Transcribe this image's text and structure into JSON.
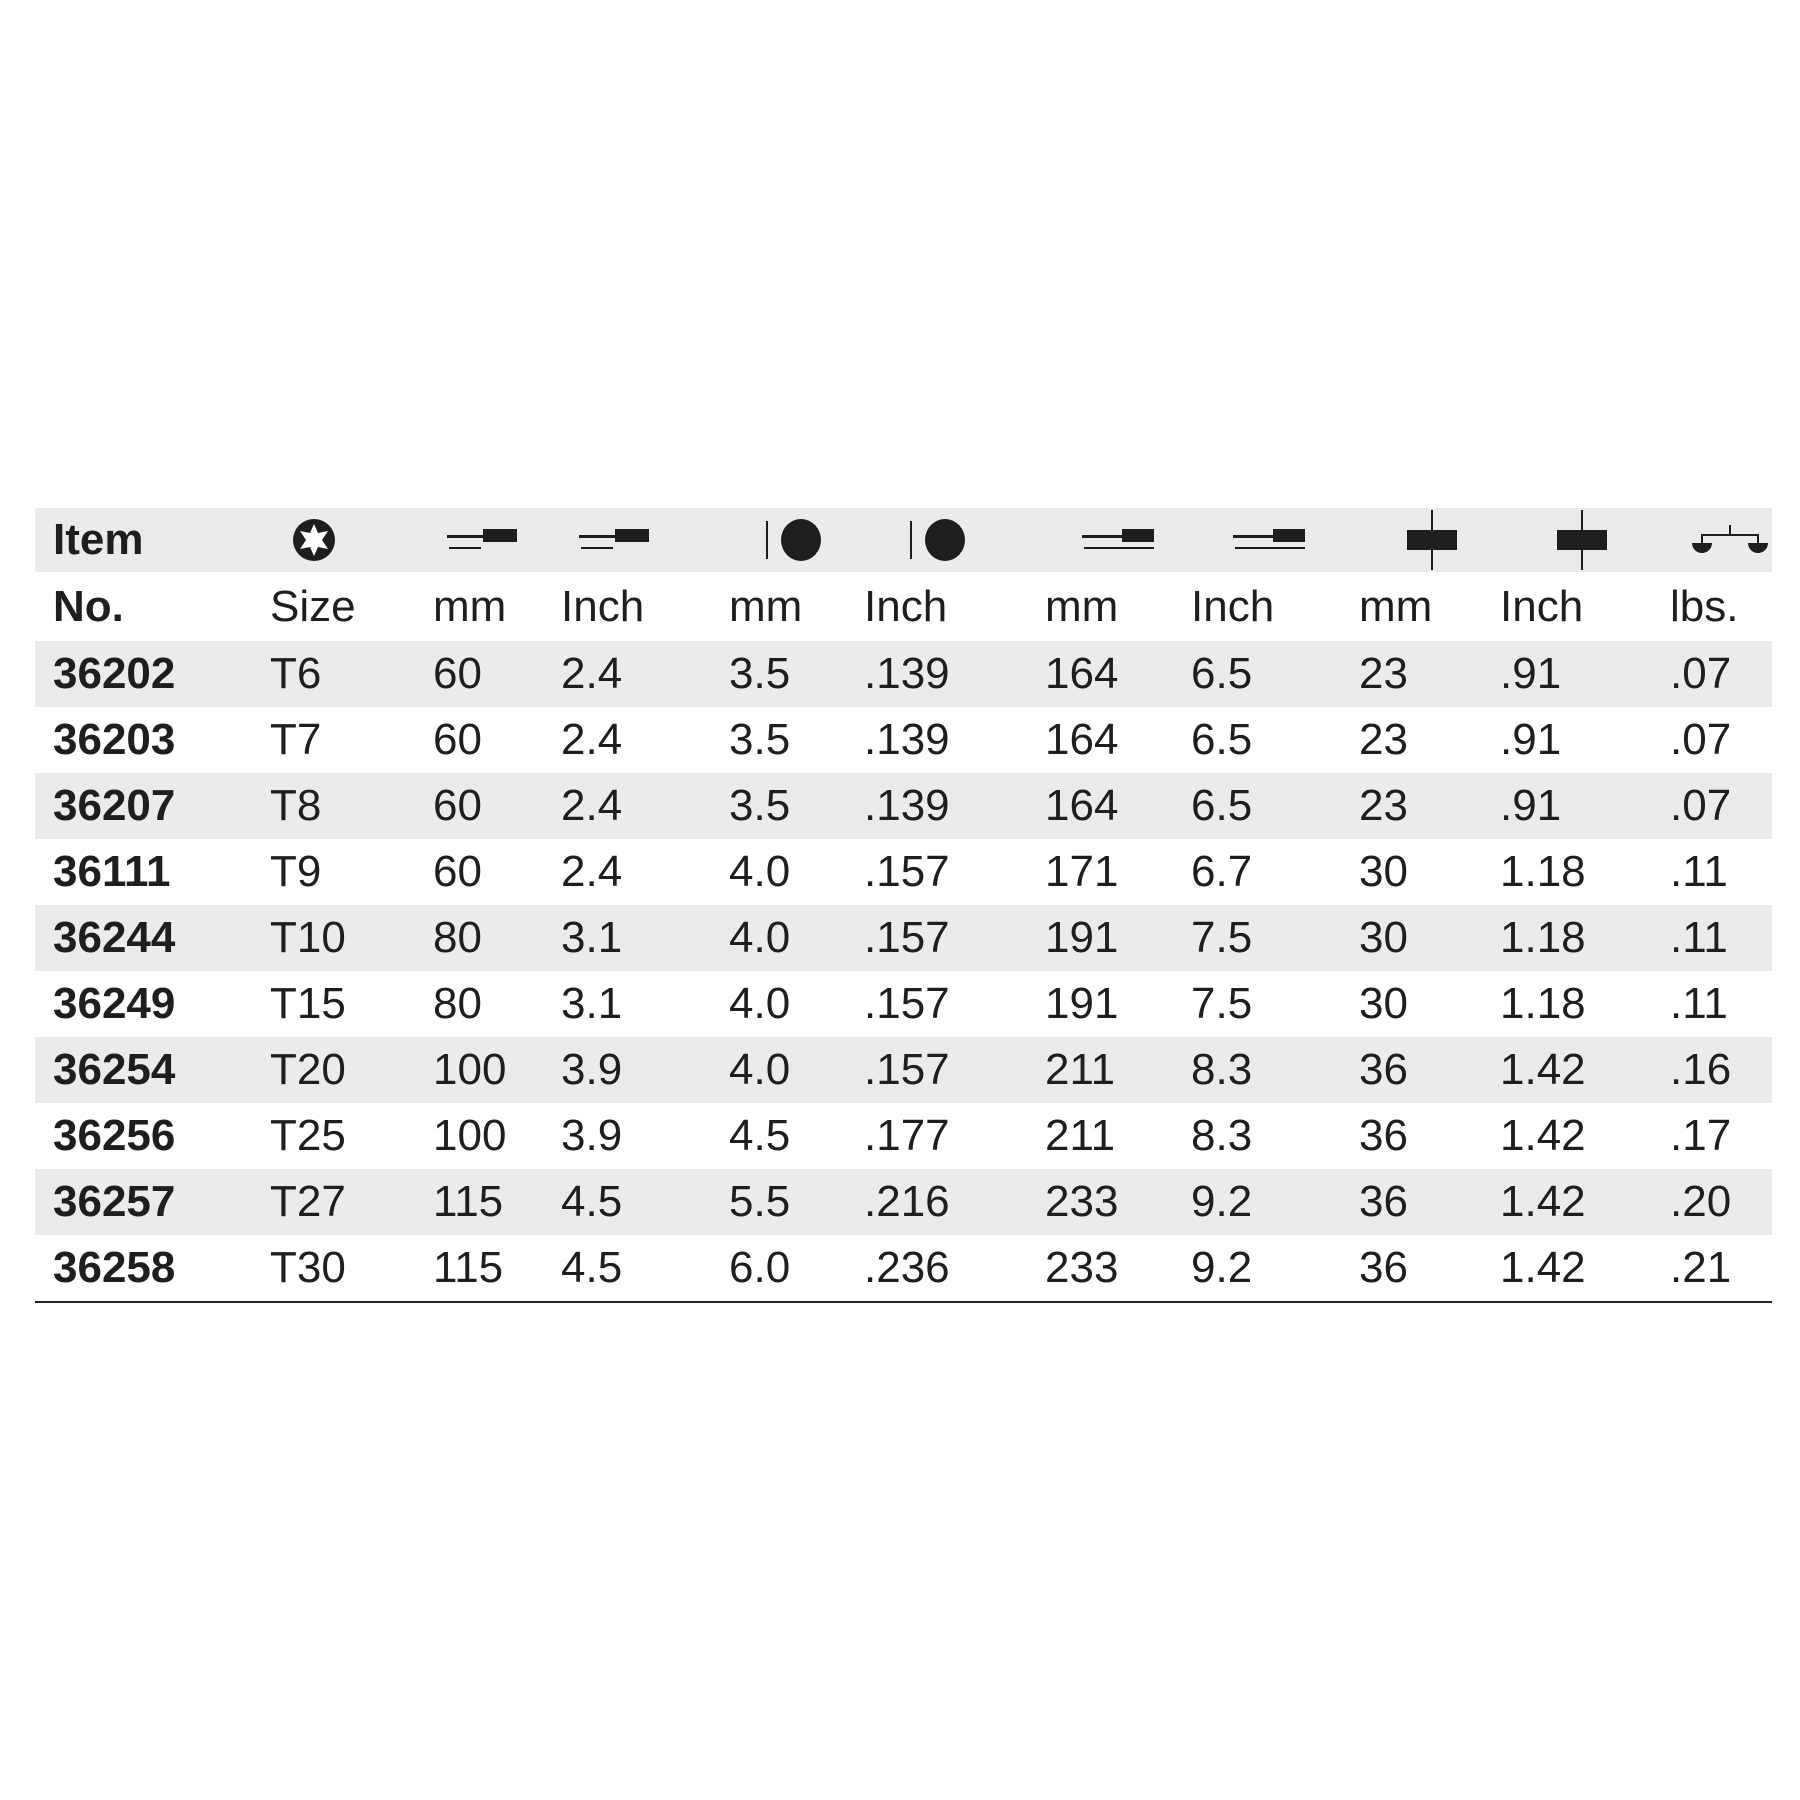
{
  "header": {
    "row1": {
      "item": "Item"
    },
    "row2": {
      "no": "No.",
      "size": "Size",
      "blade_mm": "mm",
      "blade_inch": "Inch",
      "dia_mm": "mm",
      "dia_inch": "Inch",
      "overall_mm": "mm",
      "overall_inch": "Inch",
      "handle_mm": "mm",
      "handle_inch": "Inch",
      "weight": "lbs."
    },
    "icons": [
      "torx-star-icon",
      "blade-length-icon",
      "blade-length-icon",
      "diameter-icon",
      "diameter-icon",
      "overall-length-icon",
      "overall-length-icon",
      "handle-diameter-icon",
      "handle-diameter-icon",
      "weight-scale-icon"
    ]
  },
  "rows": [
    [
      "36202",
      "T6",
      "60",
      "2.4",
      "3.5",
      ".139",
      "164",
      "6.5",
      "23",
      ".91",
      ".07"
    ],
    [
      "36203",
      "T7",
      "60",
      "2.4",
      "3.5",
      ".139",
      "164",
      "6.5",
      "23",
      ".91",
      ".07"
    ],
    [
      "36207",
      "T8",
      "60",
      "2.4",
      "3.5",
      ".139",
      "164",
      "6.5",
      "23",
      ".91",
      ".07"
    ],
    [
      "36111",
      "T9",
      "60",
      "2.4",
      "4.0",
      ".157",
      "171",
      "6.7",
      "30",
      "1.18",
      ".11"
    ],
    [
      "36244",
      "T10",
      "80",
      "3.1",
      "4.0",
      ".157",
      "191",
      "7.5",
      "30",
      "1.18",
      ".11"
    ],
    [
      "36249",
      "T15",
      "80",
      "3.1",
      "4.0",
      ".157",
      "191",
      "7.5",
      "30",
      "1.18",
      ".11"
    ],
    [
      "36254",
      "T20",
      "100",
      "3.9",
      "4.0",
      ".157",
      "211",
      "8.3",
      "36",
      "1.42",
      ".16"
    ],
    [
      "36256",
      "T25",
      "100",
      "3.9",
      "4.5",
      ".177",
      "211",
      "8.3",
      "36",
      "1.42",
      ".17"
    ],
    [
      "36257",
      "T27",
      "115",
      "4.5",
      "5.5",
      ".216",
      "233",
      "9.2",
      "36",
      "1.42",
      ".20"
    ],
    [
      "36258",
      "T30",
      "115",
      "4.5",
      "6.0",
      ".236",
      "233",
      "9.2",
      "36",
      "1.42",
      ".21"
    ]
  ],
  "colors": {
    "stripe": "#ebebeb",
    "text": "#1e1e1e"
  }
}
